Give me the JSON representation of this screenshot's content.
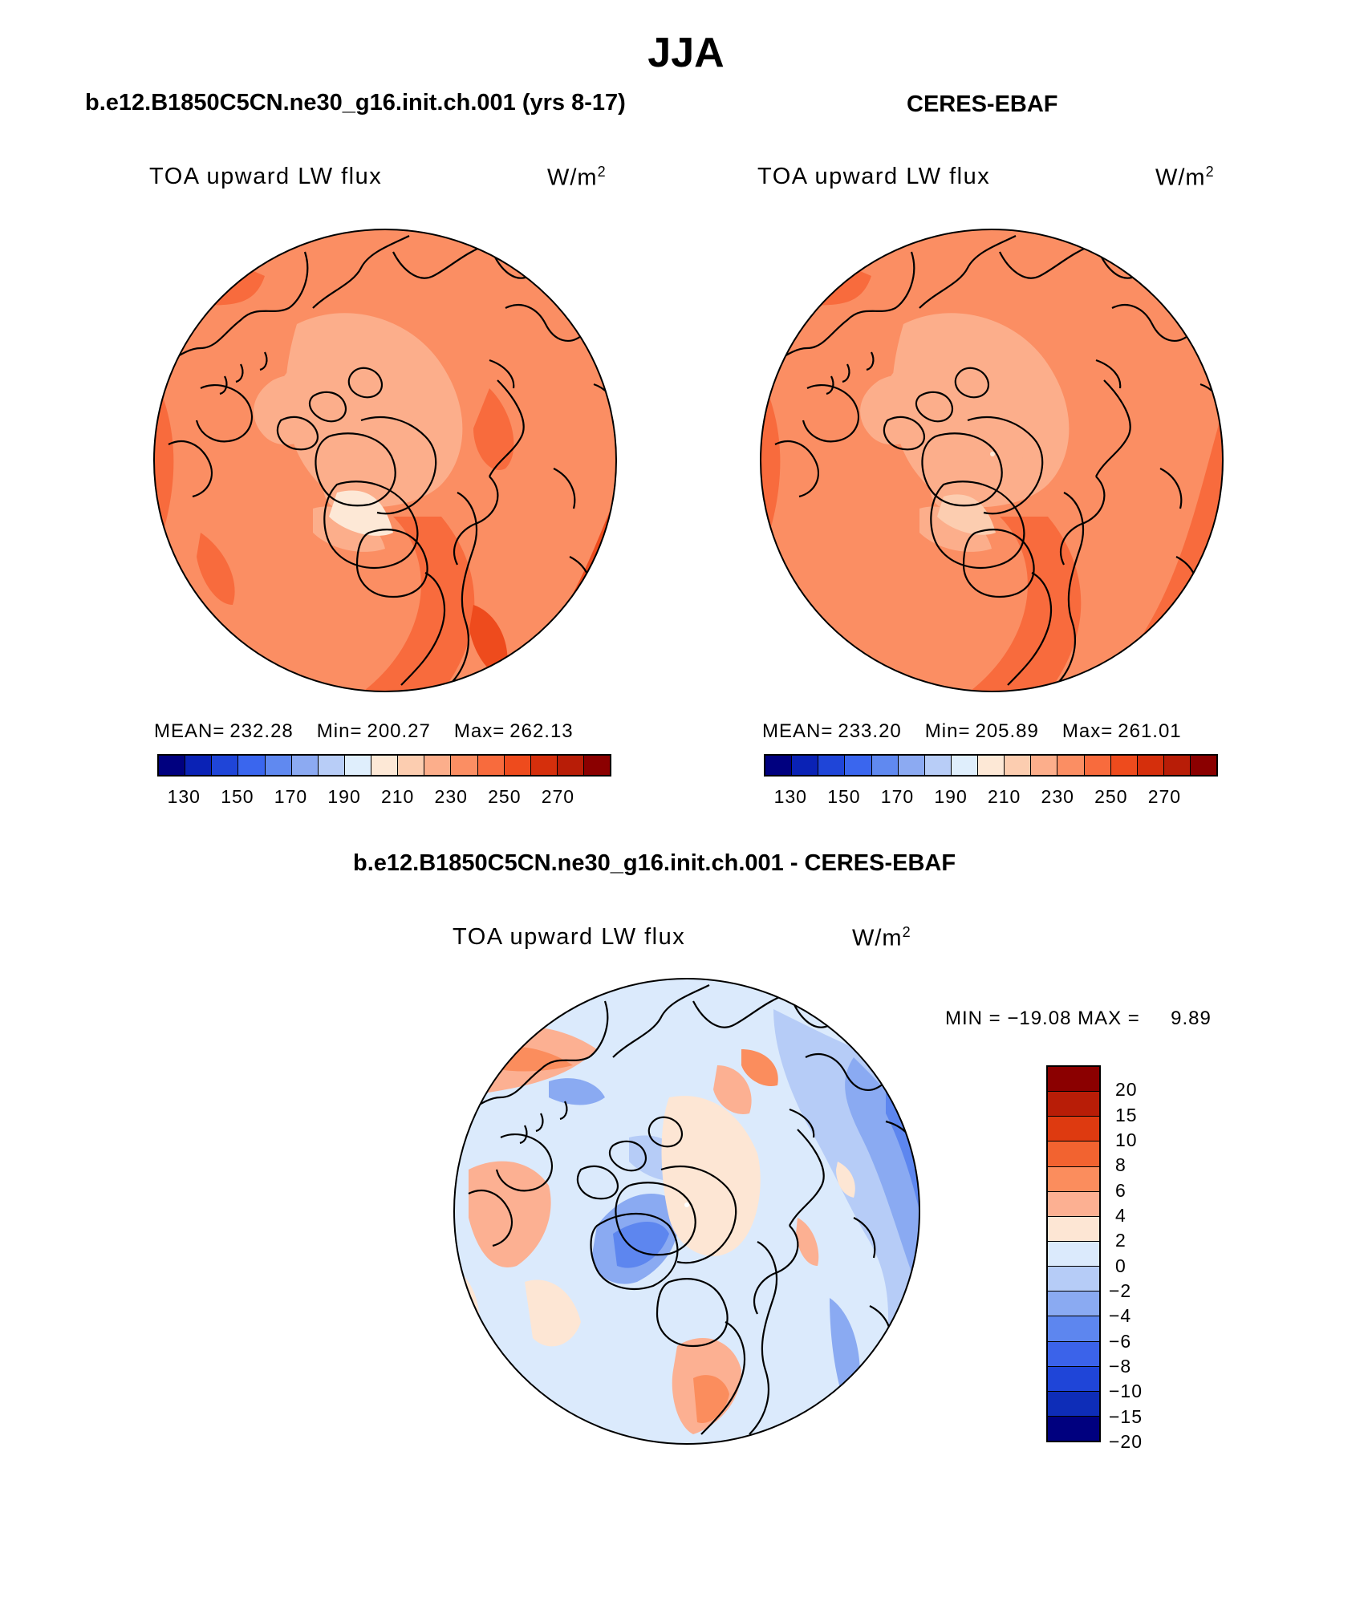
{
  "season_title": "JJA",
  "panels": {
    "model": {
      "case_title": "b.e12.B1850C5CN.ne30_g16.init.ch.001 (yrs 8-17)",
      "variable_label": "TOA upward LW flux",
      "units_base": "W/m",
      "units_exp": "2",
      "mean_label": "MEAN=",
      "mean_value": "232.28",
      "min_label": "Min=",
      "min_value": "200.27",
      "max_label": "Max=",
      "max_value": "262.13"
    },
    "obs": {
      "case_title": "CERES-EBAF",
      "variable_label": "TOA upward LW flux",
      "units_base": "W/m",
      "units_exp": "2",
      "mean_label": "MEAN=",
      "mean_value": "233.20",
      "min_label": "Min=",
      "min_value": "205.89",
      "max_label": "Max=",
      "max_value": "261.01"
    },
    "diff": {
      "case_title": "b.e12.B1850C5CN.ne30_g16.init.ch.001 - CERES-EBAF",
      "variable_label": "TOA upward LW flux",
      "units_base": "W/m",
      "units_exp": "2",
      "minmax_text": "MIN = −19.08 MAX =     9.89"
    }
  },
  "abs_colorbar": {
    "colors": [
      "#00007f",
      "#0a22b5",
      "#1f45d8",
      "#3a66ee",
      "#6089f0",
      "#8caaf2",
      "#b8cdf7",
      "#dfeefc",
      "#fde8d6",
      "#fccdb0",
      "#fcae8b",
      "#fb8e63",
      "#f86b3d",
      "#ee4b1d",
      "#d52f0c",
      "#b81d07",
      "#8b0000"
    ],
    "tick_labels": [
      "130",
      "150",
      "170",
      "190",
      "210",
      "230",
      "250",
      "270"
    ]
  },
  "diff_colorbar": {
    "colors": [
      "#8b0000",
      "#b81d07",
      "#de3a10",
      "#f26330",
      "#fb8d5d",
      "#fcb092",
      "#fde6d4",
      "#dbeafc",
      "#b6ccf7",
      "#8aaaf2",
      "#5d86ef",
      "#3b63ea",
      "#1f45d8",
      "#0e2db8",
      "#00007f"
    ],
    "tick_labels": [
      "20",
      "15",
      "10",
      "8",
      "6",
      "4",
      "2",
      "0",
      "−2",
      "−4",
      "−6",
      "−8",
      "−10",
      "−15",
      "−20"
    ]
  }
}
